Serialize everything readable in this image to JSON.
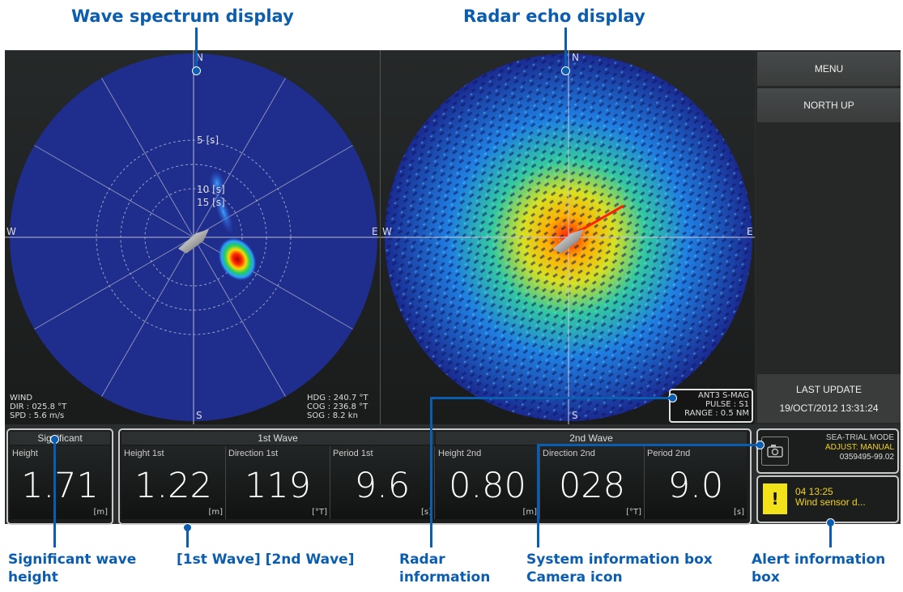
{
  "callouts": {
    "wave_spectrum": "Wave spectrum display",
    "radar_echo": "Radar echo display",
    "significant": "Significant wave height",
    "waves": "[1st Wave] [2nd Wave]",
    "radar_info": "Radar information",
    "system_info": "System information box Camera icon",
    "alert_info": "Alert information box"
  },
  "wave_scope": {
    "n": "N",
    "s": "S",
    "e": "E",
    "w": "W",
    "ring1": "5 [s]",
    "ring2": "10 [s]",
    "ring3": "15 [s]",
    "wind_title": "WIND",
    "wind_dir": "DIR : 025.8 °T",
    "wind_spd": "SPD : 5.6 m/s",
    "hdg": "HDG : 240.7 °T",
    "cog": "COG : 236.8 °T",
    "sog": "SOG :    8.2 kn"
  },
  "radar_scope": {
    "n": "N",
    "s": "S",
    "e": "E",
    "w": "W",
    "ant": "ANT3 S-MAG",
    "pulse": "PULSE : S1",
    "range": "RANGE : 0.5 NM"
  },
  "side": {
    "menu": "MENU",
    "north_up": "NORTH UP",
    "last_update_label": "LAST UPDATE",
    "last_update_value": "19/OCT/2012 13:31:24"
  },
  "significant": {
    "header": "Significant",
    "label": "Height",
    "value": "1.71",
    "unit": "[m]"
  },
  "wave1": {
    "header": "1st Wave",
    "height_label": "Height 1st",
    "height_value": "1.22",
    "height_unit": "[m]",
    "dir_label": "Direction 1st",
    "dir_value": "119",
    "dir_unit": "[°T]",
    "period_label": "Period 1st",
    "period_value": "9.6",
    "period_unit": "[s]"
  },
  "wave2": {
    "header": "2nd Wave",
    "height_label": "Height 2nd",
    "height_value": "0.80",
    "height_unit": "[m]",
    "dir_label": "Direction 2nd",
    "dir_value": "028",
    "dir_unit": "[°T]",
    "period_label": "Period 2nd",
    "period_value": "9.0",
    "period_unit": "[s]"
  },
  "system": {
    "mode": "SEA-TRIAL MODE",
    "adjust": "ADJUST: MANUAL",
    "serial": "0359495-99.02"
  },
  "alert": {
    "icon": "!",
    "time": "04 13:25",
    "message": "Wind sensor d..."
  },
  "colors": {
    "callout": "#0a5db0",
    "scope_blue": "#1f2d8c",
    "alert_yellow": "#f2e21a",
    "sys_yellow": "#f2d21a"
  }
}
